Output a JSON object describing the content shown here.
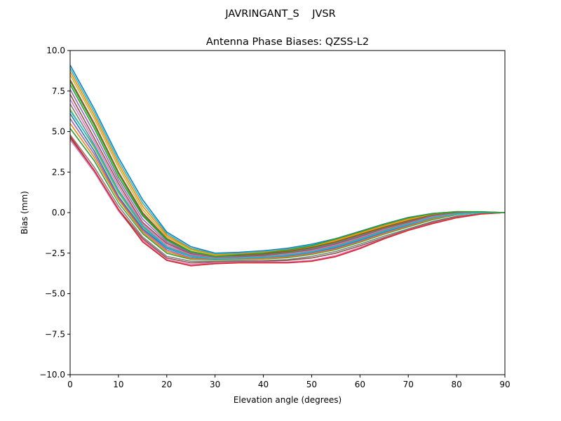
{
  "figure": {
    "suptitle": "JAVRINGANT_S    JVSR"
  },
  "chart_data": {
    "type": "line",
    "title": "Antenna Phase Biases: QZSS-L2",
    "xlabel": "Elevation angle (degrees)",
    "ylabel": "Bias (mm)",
    "xlim": [
      0,
      90
    ],
    "ylim": [
      -10,
      10
    ],
    "xticks": [
      0,
      10,
      20,
      30,
      40,
      50,
      60,
      70,
      80,
      90
    ],
    "xtick_labels": [
      "0",
      "10",
      "20",
      "30",
      "40",
      "50",
      "60",
      "70",
      "80",
      "90"
    ],
    "yticks": [
      10,
      7.5,
      5,
      2.5,
      0,
      -2.5,
      -5,
      -7.5,
      -10
    ],
    "ytick_labels": [
      "10.0",
      "7.5",
      "5.0",
      "2.5",
      "0.0",
      "−2.5",
      "−5.0",
      "−7.5",
      "−10.0"
    ],
    "grid": false,
    "legend": "none",
    "x": [
      0,
      5,
      10,
      15,
      20,
      25,
      30,
      35,
      40,
      45,
      50,
      55,
      60,
      65,
      70,
      75,
      80,
      85,
      90
    ],
    "series": [
      {
        "color": "#1f77b4",
        "values": [
          9.1,
          6.4,
          3.4,
          0.8,
          -1.2,
          -2.1,
          -2.5,
          -2.45,
          -2.35,
          -2.2,
          -1.95,
          -1.6,
          -1.15,
          -0.7,
          -0.3,
          -0.05,
          0.05,
          0.05,
          0.0
        ]
      },
      {
        "color": "#17becf",
        "values": [
          8.9,
          6.2,
          3.2,
          0.6,
          -1.3,
          -2.2,
          -2.55,
          -2.5,
          -2.4,
          -2.25,
          -2.0,
          -1.65,
          -1.2,
          -0.75,
          -0.35,
          -0.08,
          0.04,
          0.04,
          0.0
        ]
      },
      {
        "color": "#ff7f0e",
        "values": [
          8.7,
          6.0,
          3.0,
          0.4,
          -1.4,
          -2.25,
          -2.6,
          -2.55,
          -2.45,
          -2.3,
          -2.05,
          -1.7,
          -1.25,
          -0.8,
          -0.4,
          -0.1,
          0.03,
          0.04,
          0.0
        ]
      },
      {
        "color": "#bcbd22",
        "values": [
          8.5,
          5.8,
          2.8,
          0.2,
          -1.5,
          -2.3,
          -2.65,
          -2.6,
          -2.5,
          -2.35,
          -2.1,
          -1.75,
          -1.3,
          -0.85,
          -0.45,
          -0.12,
          0.02,
          0.03,
          0.0
        ]
      },
      {
        "color": "#d62728",
        "values": [
          8.2,
          5.5,
          2.5,
          0.0,
          -1.6,
          -2.4,
          -2.7,
          -2.65,
          -2.55,
          -2.4,
          -2.15,
          -1.8,
          -1.35,
          -0.9,
          -0.5,
          -0.15,
          0.0,
          0.03,
          0.0
        ]
      },
      {
        "color": "#2ca02c",
        "values": [
          7.9,
          5.2,
          2.2,
          -0.2,
          -1.7,
          -2.45,
          -2.72,
          -2.7,
          -2.6,
          -2.45,
          -2.2,
          -1.85,
          -1.4,
          -0.95,
          -0.55,
          -0.18,
          0.0,
          0.02,
          0.0
        ]
      },
      {
        "color": "#9467bd",
        "values": [
          7.6,
          4.9,
          2.0,
          -0.4,
          -1.8,
          -2.5,
          -2.75,
          -2.72,
          -2.62,
          -2.5,
          -2.25,
          -1.9,
          -1.45,
          -1.0,
          -0.58,
          -0.2,
          -0.02,
          0.02,
          0.0
        ]
      },
      {
        "color": "#8c564b",
        "values": [
          7.3,
          4.6,
          1.8,
          -0.6,
          -1.9,
          -2.55,
          -2.78,
          -2.75,
          -2.65,
          -2.52,
          -2.3,
          -1.95,
          -1.5,
          -1.02,
          -0.6,
          -0.22,
          -0.04,
          0.01,
          0.0
        ]
      },
      {
        "color": "#e377c2",
        "values": [
          7.0,
          4.4,
          1.6,
          -0.7,
          -2.0,
          -2.6,
          -2.8,
          -2.78,
          -2.7,
          -2.55,
          -2.35,
          -2.0,
          -1.55,
          -1.05,
          -0.65,
          -0.25,
          -0.06,
          0.01,
          0.0
        ]
      },
      {
        "color": "#7f7f7f",
        "values": [
          6.7,
          4.2,
          1.4,
          -0.8,
          -2.1,
          -2.65,
          -2.82,
          -2.8,
          -2.72,
          -2.6,
          -2.4,
          -2.05,
          -1.6,
          -1.1,
          -0.68,
          -0.28,
          -0.08,
          0.0,
          0.0
        ]
      },
      {
        "color": "#bcbd22",
        "values": [
          6.4,
          4.0,
          1.2,
          -0.9,
          -2.15,
          -2.7,
          -2.85,
          -2.83,
          -2.75,
          -2.62,
          -2.42,
          -2.1,
          -1.65,
          -1.15,
          -0.72,
          -0.3,
          -0.1,
          0.0,
          0.0
        ]
      },
      {
        "color": "#1f77b4",
        "values": [
          6.1,
          3.8,
          1.0,
          -1.0,
          -2.2,
          -2.72,
          -2.88,
          -2.86,
          -2.78,
          -2.65,
          -2.45,
          -2.15,
          -1.7,
          -1.2,
          -0.75,
          -0.32,
          -0.12,
          -0.01,
          0.0
        ]
      },
      {
        "color": "#9467bd",
        "values": [
          5.8,
          3.6,
          0.9,
          -1.1,
          -2.3,
          -2.8,
          -2.9,
          -2.88,
          -2.82,
          -2.7,
          -2.5,
          -2.2,
          -1.75,
          -1.25,
          -0.8,
          -0.35,
          -0.14,
          -0.02,
          0.0
        ]
      },
      {
        "color": "#ff7f0e",
        "values": [
          5.5,
          3.4,
          0.8,
          -1.2,
          -2.4,
          -2.85,
          -2.92,
          -2.9,
          -2.85,
          -2.75,
          -2.55,
          -2.25,
          -1.8,
          -1.3,
          -0.85,
          -0.4,
          -0.16,
          -0.03,
          0.0
        ]
      },
      {
        "color": "#2ca02c",
        "values": [
          5.2,
          3.2,
          0.6,
          -1.3,
          -2.5,
          -2.9,
          -2.95,
          -2.93,
          -2.9,
          -2.8,
          -2.6,
          -2.3,
          -1.85,
          -1.35,
          -0.9,
          -0.45,
          -0.18,
          -0.04,
          0.0
        ]
      },
      {
        "color": "#ffffff",
        "values": [
          5.0,
          3.0,
          0.5,
          -1.4,
          -2.6,
          -2.95,
          -2.98,
          -2.96,
          -2.93,
          -2.85,
          -2.65,
          -2.35,
          -1.9,
          -1.4,
          -0.95,
          -0.5,
          -0.2,
          -0.05,
          0.0
        ]
      },
      {
        "color": "#7f7f7f",
        "values": [
          4.8,
          2.8,
          0.4,
          -1.5,
          -2.7,
          -3.0,
          -3.0,
          -2.98,
          -2.96,
          -2.9,
          -2.7,
          -2.4,
          -1.95,
          -1.45,
          -1.0,
          -0.55,
          -0.22,
          -0.06,
          0.0
        ]
      },
      {
        "color": "#8c564b",
        "values": [
          4.6,
          2.6,
          0.2,
          -1.6,
          -2.8,
          -3.1,
          -3.05,
          -3.02,
          -3.0,
          -2.95,
          -2.8,
          -2.5,
          -2.05,
          -1.55,
          -1.05,
          -0.6,
          -0.25,
          -0.07,
          0.0
        ]
      },
      {
        "color": "#e377c2",
        "values": [
          4.5,
          2.5,
          0.1,
          -1.7,
          -2.9,
          -3.2,
          -3.1,
          -3.06,
          -3.05,
          -3.05,
          -2.95,
          -2.65,
          -2.15,
          -1.6,
          -1.08,
          -0.65,
          -0.3,
          -0.08,
          0.0
        ]
      },
      {
        "color": "#d62728",
        "values": [
          4.7,
          2.6,
          0.2,
          -1.8,
          -2.95,
          -3.28,
          -3.15,
          -3.1,
          -3.1,
          -3.1,
          -3.0,
          -2.72,
          -2.22,
          -1.62,
          -1.1,
          -0.68,
          -0.32,
          -0.09,
          0.0
        ]
      },
      {
        "color": "#17becf",
        "values": [
          6.3,
          4.1,
          1.3,
          -0.85,
          -2.15,
          -2.7,
          -2.85,
          -2.82,
          -2.75,
          -2.62,
          -2.42,
          -2.1,
          -1.65,
          -1.15,
          -0.72,
          -0.3,
          -0.1,
          0.0,
          0.0
        ]
      },
      {
        "color": "#2ca02c",
        "values": [
          8.1,
          5.4,
          2.4,
          -0.1,
          -1.65,
          -2.4,
          -2.7,
          -2.6,
          -2.5,
          -2.32,
          -2.05,
          -1.62,
          -1.18,
          -0.72,
          -0.32,
          -0.06,
          0.06,
          0.05,
          0.0
        ]
      }
    ]
  }
}
